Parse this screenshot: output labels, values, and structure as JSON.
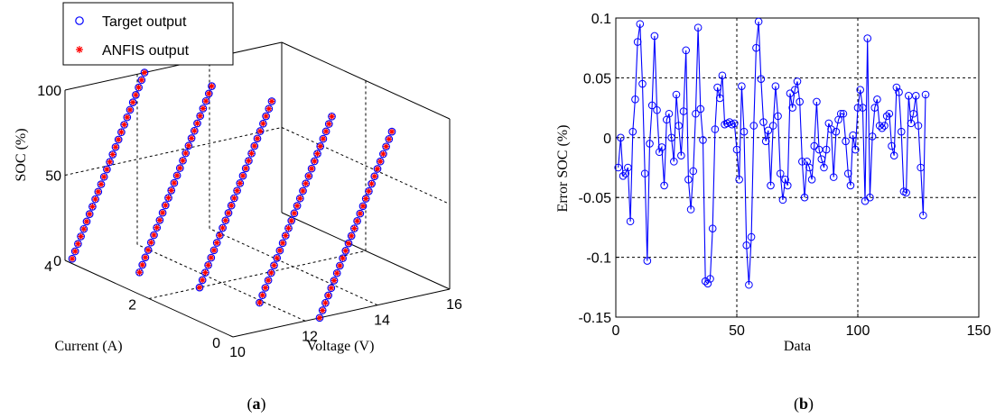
{
  "chart_data": [
    {
      "type": "scatter",
      "projection": "3d",
      "panel_label": "(a)",
      "xlabel": "Voltage (V)",
      "ylabel": "Current (A)",
      "zlabel": "SOC (%)",
      "xlim": [
        10,
        16
      ],
      "ylim": [
        0,
        4
      ],
      "zlim": [
        0,
        100
      ],
      "xticks": [
        "10",
        "12",
        "14",
        "16"
      ],
      "yticks": [
        "0",
        "2",
        "4"
      ],
      "zticks": [
        "0",
        "50",
        "100"
      ],
      "grid": true,
      "legend": "top-left",
      "series": [
        {
          "name": "Target output",
          "marker": "circle",
          "color": "#0000ff"
        },
        {
          "name": "ANFIS output",
          "marker": "star",
          "color": "#ff0000"
        }
      ],
      "curves": [
        {
          "current": 4.0,
          "voltage_range": [
            10.2,
            12.2
          ],
          "soc_range": [
            0,
            100
          ]
        },
        {
          "current": 3.0,
          "voltage_range": [
            10.9,
            12.9
          ],
          "soc_range": [
            0,
            100
          ]
        },
        {
          "current": 2.0,
          "voltage_range": [
            11.4,
            13.4
          ],
          "soc_range": [
            0,
            100
          ]
        },
        {
          "current": 1.0,
          "voltage_range": [
            11.9,
            13.9
          ],
          "soc_range": [
            0,
            100
          ]
        },
        {
          "current": 0.0,
          "voltage_range": [
            12.4,
            14.4
          ],
          "soc_range": [
            0,
            100
          ]
        }
      ]
    },
    {
      "type": "line",
      "panel_label": "(b)",
      "xlabel": "Data",
      "ylabel": "Error SOC (%)",
      "xlim": [
        0,
        150
      ],
      "ylim": [
        -0.15,
        0.1
      ],
      "xticks": [
        "0",
        "50",
        "100",
        "150"
      ],
      "yticks": [
        "-0.15",
        "-0.1",
        "-0.05",
        "0",
        "0.05",
        "0.1"
      ],
      "grid": true,
      "marker": "circle",
      "color": "#0000ff",
      "series": [
        {
          "values": [
            -0.025,
            0,
            -0.032,
            -0.03,
            -0.025,
            -0.07,
            0.005,
            0.032,
            0.08,
            0.095,
            0.045,
            -0.03,
            -0.103,
            -0.005,
            0.027,
            0.085,
            0.023,
            -0.012,
            -0.008,
            -0.04,
            0.015,
            0.02,
            0,
            -0.02,
            0.036,
            0.01,
            -0.015,
            0.022,
            0.073,
            -0.035,
            -0.06,
            -0.028,
            0.02,
            0.092,
            0.024,
            -0.002,
            -0.12,
            -0.122,
            -0.118,
            -0.076,
            0.007,
            0.042,
            0.033,
            0.052,
            0.011,
            0.012,
            0.013,
            0.011,
            0.012,
            -0.01,
            -0.035,
            0.043,
            0.005,
            -0.09,
            -0.123,
            -0.083,
            0.01,
            0.075,
            0.097,
            0.049,
            0.013,
            -0.003,
            0.006,
            -0.04,
            0.01,
            0.043,
            0.018,
            -0.03,
            -0.052,
            -0.035,
            -0.04,
            0.037,
            0.025,
            0.04,
            0.047,
            0.03,
            -0.02,
            -0.05,
            -0.02,
            -0.025,
            -0.035,
            -0.007,
            0.03,
            -0.01,
            -0.018,
            -0.025,
            -0.01,
            0.012,
            0.007,
            -0.033,
            0.005,
            0.015,
            0.02,
            0.02,
            -0.003,
            -0.03,
            -0.04,
            0.002,
            -0.01,
            0.025,
            0.04,
            0.025,
            -0.053,
            0.083,
            -0.05,
            0.001,
            0.025,
            0.032,
            0.01,
            0.008,
            0.01,
            0.018,
            0.02,
            -0.007,
            -0.015,
            0.042,
            0.038,
            0.005,
            -0.045,
            -0.046,
            0.035,
            0.012,
            0.02,
            0.035,
            0.01,
            -0.025,
            -0.065,
            0.036
          ]
        }
      ]
    }
  ],
  "legend": {
    "target": "Target output",
    "anfis": "ANFIS output"
  },
  "captions": {
    "a_open": "(",
    "a_letter": "a",
    "a_close": ")",
    "b_open": "(",
    "b_letter": "b",
    "b_close": ")"
  }
}
